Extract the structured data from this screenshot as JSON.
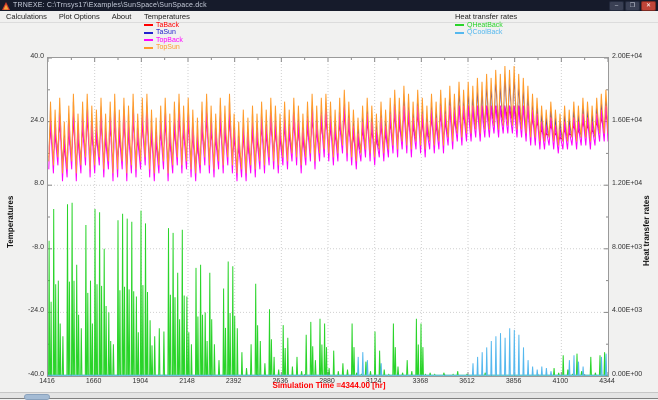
{
  "window": {
    "title": "TRNEXE: C:\\Trnsys17\\Examples\\SunSpace\\SunSpace.dck",
    "minimize_label": "–",
    "maximize_label": "❐",
    "close_label": "✕"
  },
  "menu": {
    "items": [
      "Calculations",
      "Plot Options",
      "About"
    ]
  },
  "legend_left": {
    "title": "Temperatures",
    "items": [
      {
        "label": "TaBack",
        "color": "#ff0000"
      },
      {
        "label": "TaSun",
        "color": "#2222cc"
      },
      {
        "label": "TopBack",
        "color": "#ff00ff"
      },
      {
        "label": "TopSun",
        "color": "#ff9b2b"
      }
    ]
  },
  "legend_right": {
    "title": "Heat transfer rates",
    "items": [
      {
        "label": "QHeatBack",
        "color": "#2ad42a"
      },
      {
        "label": "QCoolBack",
        "color": "#55b8ee"
      }
    ]
  },
  "status": {
    "text": "Simulation Time =4344.00 [hr]",
    "color": "#ff0000"
  },
  "chart_data": {
    "type": "line",
    "x_label": "Simulation Time [hr]",
    "x_start_hour": 1416,
    "x_end_hour": 4344,
    "x_ticks": [
      1416,
      1660,
      1904,
      2148,
      2392,
      2636,
      2880,
      3124,
      3368,
      3612,
      3856,
      4100,
      4344
    ],
    "left_axis": {
      "label": "Temperatures",
      "min": -40,
      "max": 40,
      "ticks": [
        40,
        24,
        8,
        -8,
        -24,
        -40
      ],
      "tick_labels": [
        "40.0",
        "24.0",
        "8.0",
        "-8.0",
        "-24.0",
        "-40.0"
      ]
    },
    "right_axis": {
      "label": "Heat transfer rates",
      "min": 0,
      "max": 20000,
      "ticks": [
        20000,
        16000,
        12000,
        8000,
        4000,
        0
      ],
      "tick_labels": [
        "2.00E+04",
        "1.60E+04",
        "1.20E+04",
        "8.00E+03",
        "4.00E+03",
        "0.00E+00"
      ]
    },
    "days": 122,
    "hours_per_day": 24,
    "grid": "dotted",
    "temperature_series": [
      {
        "name": "TaBack",
        "color": "#ff0000",
        "daily_max": [
          23,
          21,
          24,
          18,
          22,
          25,
          20,
          23,
          25,
          22,
          21,
          24,
          20,
          23,
          25,
          21,
          24,
          22,
          25,
          20,
          24,
          25,
          21,
          19,
          22,
          24,
          20,
          23,
          25,
          22,
          24,
          21,
          19,
          23,
          25,
          22,
          20,
          24,
          22,
          25,
          20,
          18,
          21,
          19,
          22,
          20,
          23,
          21,
          24,
          22,
          20,
          23,
          21,
          24,
          22,
          20,
          23,
          25,
          22,
          24,
          25,
          23,
          21,
          24,
          26,
          23,
          21,
          19,
          22,
          24,
          22,
          20,
          23,
          21,
          24,
          26,
          24,
          27,
          25,
          23,
          26,
          24,
          22,
          25,
          23,
          26,
          24,
          27,
          25,
          28,
          26,
          28,
          27,
          28,
          28,
          28,
          28,
          28,
          28,
          28,
          28,
          28,
          28,
          28,
          27,
          25,
          24,
          22,
          21,
          23,
          21,
          20,
          22,
          21,
          23,
          22,
          24,
          23,
          22,
          24,
          25,
          26
        ],
        "daily_min": [
          15,
          14,
          16,
          12,
          13,
          15,
          12,
          14,
          16,
          13,
          14,
          16,
          13,
          15,
          12,
          13,
          15,
          12,
          14,
          13,
          15,
          16,
          13,
          12,
          14,
          15,
          12,
          14,
          16,
          14,
          15,
          13,
          12,
          14,
          16,
          14,
          13,
          15,
          14,
          16,
          14,
          12,
          13,
          12,
          14,
          13,
          15,
          14,
          16,
          15,
          14,
          16,
          15,
          17,
          16,
          14,
          16,
          17,
          15,
          17,
          18,
          17,
          16,
          17,
          19,
          17,
          16,
          15,
          17,
          18,
          17,
          16,
          18,
          17,
          18,
          19,
          18,
          20,
          19,
          18,
          20,
          19,
          18,
          20,
          19,
          20,
          19,
          21,
          20,
          22,
          21,
          22,
          22,
          23,
          22,
          23,
          23,
          24,
          23,
          24,
          24,
          24,
          23,
          23,
          22,
          21,
          21,
          20,
          20,
          21,
          20,
          19,
          20,
          20,
          21,
          20,
          21,
          21,
          20,
          21,
          22,
          22
        ]
      },
      {
        "name": "TaSun",
        "color": "#2222cc",
        "daily_max": [
          27,
          25,
          28,
          22,
          26,
          29,
          24,
          27,
          29,
          26,
          25,
          28,
          24,
          27,
          29,
          25,
          28,
          26,
          29,
          24,
          28,
          29,
          25,
          23,
          26,
          28,
          24,
          27,
          29,
          26,
          28,
          25,
          23,
          27,
          29,
          26,
          24,
          28,
          26,
          29,
          24,
          22,
          25,
          23,
          26,
          24,
          27,
          25,
          28,
          26,
          24,
          27,
          25,
          28,
          26,
          24,
          27,
          29,
          26,
          28,
          29,
          27,
          25,
          28,
          30,
          27,
          25,
          23,
          26,
          28,
          26,
          24,
          27,
          25,
          28,
          30,
          28,
          31,
          29,
          27,
          30,
          28,
          26,
          29,
          27,
          30,
          28,
          31,
          29,
          32,
          30,
          32,
          31,
          33,
          32,
          34,
          33,
          35,
          34,
          36,
          35,
          36,
          34,
          33,
          31,
          29,
          28,
          26,
          25,
          27,
          25,
          24,
          26,
          25,
          27,
          26,
          28,
          27,
          26,
          28,
          29,
          30
        ],
        "daily_min": [
          14,
          13,
          15,
          11,
          12,
          14,
          11,
          13,
          15,
          12,
          13,
          15,
          12,
          14,
          11,
          12,
          14,
          11,
          13,
          12,
          14,
          15,
          12,
          11,
          13,
          14,
          11,
          13,
          15,
          13,
          14,
          12,
          11,
          13,
          15,
          13,
          12,
          14,
          13,
          15,
          13,
          11,
          12,
          11,
          13,
          12,
          14,
          13,
          15,
          14,
          13,
          15,
          14,
          16,
          15,
          13,
          15,
          16,
          14,
          16,
          17,
          16,
          15,
          16,
          18,
          16,
          15,
          14,
          16,
          17,
          16,
          15,
          17,
          16,
          17,
          18,
          17,
          19,
          18,
          17,
          19,
          18,
          17,
          19,
          18,
          19,
          18,
          20,
          19,
          21,
          20,
          21,
          21,
          22,
          21,
          22,
          22,
          23,
          22,
          23,
          23,
          23,
          22,
          22,
          21,
          20,
          20,
          19,
          19,
          20,
          19,
          18,
          19,
          19,
          20,
          19,
          20,
          20,
          19,
          20,
          21,
          21
        ]
      },
      {
        "name": "TopBack",
        "color": "#ff00ff",
        "daily_max": [
          25,
          23,
          26,
          20,
          24,
          27,
          22,
          25,
          27,
          24,
          23,
          26,
          22,
          25,
          27,
          23,
          26,
          24,
          27,
          22,
          26,
          27,
          23,
          21,
          24,
          26,
          22,
          25,
          27,
          24,
          26,
          23,
          21,
          25,
          27,
          24,
          22,
          26,
          24,
          27,
          22,
          20,
          23,
          21,
          24,
          22,
          25,
          23,
          26,
          24,
          22,
          25,
          23,
          26,
          24,
          22,
          25,
          27,
          24,
          26,
          27,
          25,
          23,
          26,
          28,
          25,
          23,
          21,
          24,
          26,
          24,
          22,
          25,
          23,
          26,
          28,
          26,
          28,
          27,
          25,
          28,
          26,
          24,
          27,
          25,
          28,
          26,
          28,
          27,
          28,
          28,
          28,
          28,
          28,
          28,
          28,
          28,
          28,
          28,
          28,
          28,
          28,
          28,
          28,
          28,
          27,
          26,
          24,
          23,
          25,
          23,
          22,
          24,
          23,
          25,
          24,
          26,
          25,
          24,
          26,
          27,
          28
        ],
        "daily_min": [
          12,
          11,
          13,
          9,
          10,
          12,
          9,
          11,
          13,
          10,
          11,
          13,
          10,
          12,
          9,
          10,
          12,
          9,
          11,
          10,
          12,
          13,
          10,
          9,
          11,
          12,
          9,
          11,
          13,
          11,
          12,
          10,
          9,
          11,
          13,
          11,
          10,
          12,
          11,
          13,
          11,
          9,
          10,
          9,
          11,
          10,
          12,
          11,
          13,
          12,
          11,
          13,
          12,
          14,
          13,
          11,
          13,
          14,
          12,
          14,
          15,
          14,
          13,
          14,
          16,
          14,
          13,
          12,
          14,
          15,
          14,
          13,
          15,
          14,
          15,
          16,
          15,
          17,
          16,
          15,
          17,
          16,
          15,
          17,
          16,
          17,
          16,
          18,
          17,
          19,
          18,
          19,
          19,
          20,
          19,
          20,
          20,
          21,
          20,
          21,
          21,
          21,
          20,
          20,
          19,
          18,
          18,
          17,
          17,
          18,
          17,
          16,
          17,
          17,
          18,
          17,
          18,
          18,
          17,
          18,
          19,
          19
        ]
      },
      {
        "name": "TopSun",
        "color": "#ff9b2b",
        "daily_max": [
          29,
          27,
          30,
          24,
          28,
          31,
          26,
          29,
          31,
          28,
          27,
          30,
          26,
          29,
          31,
          27,
          30,
          28,
          31,
          26,
          30,
          31,
          27,
          25,
          28,
          30,
          26,
          29,
          31,
          28,
          30,
          27,
          25,
          29,
          31,
          28,
          26,
          30,
          28,
          31,
          26,
          24,
          27,
          25,
          28,
          26,
          29,
          27,
          30,
          28,
          26,
          29,
          27,
          30,
          28,
          26,
          29,
          31,
          28,
          30,
          31,
          29,
          27,
          30,
          32,
          29,
          27,
          25,
          28,
          30,
          28,
          26,
          29,
          27,
          30,
          32,
          30,
          33,
          31,
          29,
          32,
          30,
          28,
          31,
          29,
          32,
          30,
          33,
          31,
          34,
          32,
          34,
          33,
          35,
          34,
          36,
          35,
          37,
          36,
          38,
          37,
          38,
          36,
          35,
          33,
          31,
          30,
          28,
          27,
          29,
          27,
          26,
          28,
          27,
          29,
          28,
          30,
          29,
          28,
          30,
          31,
          32
        ],
        "daily_min": [
          14,
          13,
          15,
          11,
          12,
          14,
          11,
          13,
          15,
          12,
          13,
          15,
          12,
          14,
          11,
          12,
          14,
          11,
          13,
          12,
          14,
          15,
          12,
          11,
          13,
          14,
          11,
          13,
          15,
          13,
          14,
          12,
          11,
          13,
          15,
          13,
          12,
          14,
          13,
          15,
          13,
          11,
          12,
          11,
          13,
          12,
          14,
          13,
          15,
          14,
          13,
          15,
          14,
          16,
          15,
          13,
          15,
          16,
          14,
          16,
          17,
          16,
          15,
          16,
          18,
          16,
          15,
          14,
          16,
          17,
          16,
          15,
          17,
          16,
          17,
          18,
          17,
          19,
          18,
          17,
          19,
          18,
          17,
          19,
          18,
          19,
          18,
          20,
          19,
          21,
          20,
          21,
          21,
          22,
          21,
          22,
          22,
          23,
          22,
          23,
          23,
          23,
          22,
          22,
          21,
          20,
          20,
          19,
          19,
          20,
          19,
          18,
          19,
          19,
          20,
          19,
          20,
          20,
          19,
          20,
          21,
          21
        ]
      }
    ],
    "heat_series": [
      {
        "name": "QHeatBack",
        "color": "#2ad42a",
        "daily_peak": [
          8500,
          10500,
          6000,
          2500,
          10800,
          10900,
          7000,
          3000,
          9500,
          6000,
          10500,
          10300,
          8000,
          4000,
          2000,
          9800,
          10200,
          9900,
          9700,
          5000,
          10400,
          9600,
          3500,
          2500,
          3000,
          2800,
          9300,
          9000,
          6500,
          9200,
          5000,
          2000,
          6800,
          7000,
          4000,
          6500,
          2000,
          1000,
          5500,
          7200,
          6900,
          3000,
          1500,
          500,
          2000,
          5800,
          2200,
          800,
          4200,
          1200,
          400,
          3200,
          2400,
          600,
          1200,
          300,
          2600,
          3400,
          1000,
          3600,
          3300,
          500,
          1600,
          300,
          800,
          400,
          3300,
          200,
          100,
          900,
          300,
          2800,
          1600,
          400,
          100,
          3300,
          600,
          200,
          1000,
          300,
          3600,
          3300,
          100,
          200,
          100,
          0,
          200,
          0,
          100,
          300,
          0,
          100,
          0,
          0,
          0,
          200,
          0,
          0,
          0,
          0,
          0,
          0,
          0,
          0,
          0,
          0,
          0,
          0,
          0,
          0,
          500,
          200,
          1300,
          400,
          100,
          1400,
          300,
          0,
          1200,
          200,
          1300,
          1500
        ]
      },
      {
        "name": "QCoolBack",
        "color": "#55b8ee",
        "daily_peak": [
          0,
          0,
          0,
          0,
          0,
          0,
          0,
          0,
          0,
          0,
          0,
          0,
          0,
          0,
          0,
          0,
          0,
          0,
          0,
          0,
          0,
          0,
          0,
          0,
          0,
          0,
          0,
          0,
          0,
          0,
          0,
          0,
          0,
          0,
          0,
          0,
          0,
          0,
          0,
          0,
          0,
          0,
          0,
          0,
          0,
          0,
          0,
          0,
          0,
          0,
          0,
          0,
          0,
          0,
          0,
          0,
          0,
          0,
          0,
          0,
          0,
          0,
          0,
          0,
          0,
          0,
          0,
          1200,
          1500,
          1000,
          0,
          0,
          800,
          0,
          0,
          0,
          0,
          0,
          0,
          0,
          0,
          0,
          0,
          0,
          0,
          0,
          0,
          0,
          0,
          0,
          0,
          0,
          800,
          1200,
          1500,
          1800,
          2200,
          2500,
          2700,
          2400,
          3000,
          2900,
          2600,
          1800,
          1000,
          600,
          400,
          600,
          500,
          300,
          0,
          0,
          0,
          1000,
          1300,
          900,
          600,
          0,
          0,
          0,
          1200,
          1400
        ]
      }
    ]
  }
}
